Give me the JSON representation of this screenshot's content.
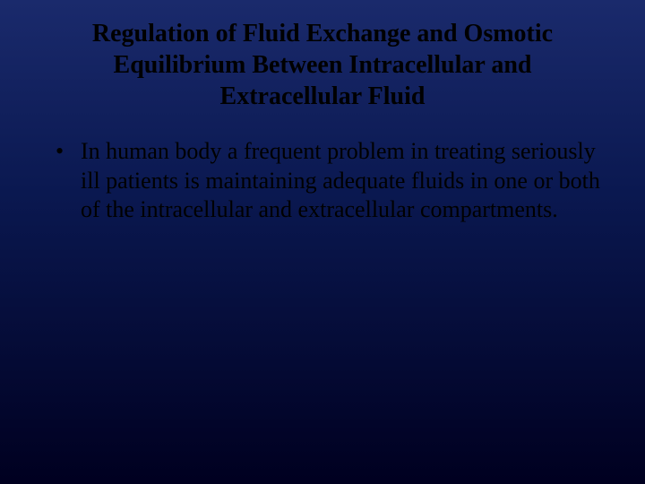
{
  "slide": {
    "title": "Regulation of Fluid Exchange and Osmotic Equilibrium Between Intracellular and Extracellular Fluid",
    "bullets": [
      "In human body a frequent problem in treating seriously ill patients is maintaining adequate fluids in one or both of the intracellular and extracellular compartments."
    ],
    "background_gradient": [
      "#1a2a6c",
      "#0a1850",
      "#000020"
    ],
    "title_fontsize": 28,
    "body_fontsize": 26,
    "text_color": "#000000",
    "font_family": "Times New Roman"
  }
}
